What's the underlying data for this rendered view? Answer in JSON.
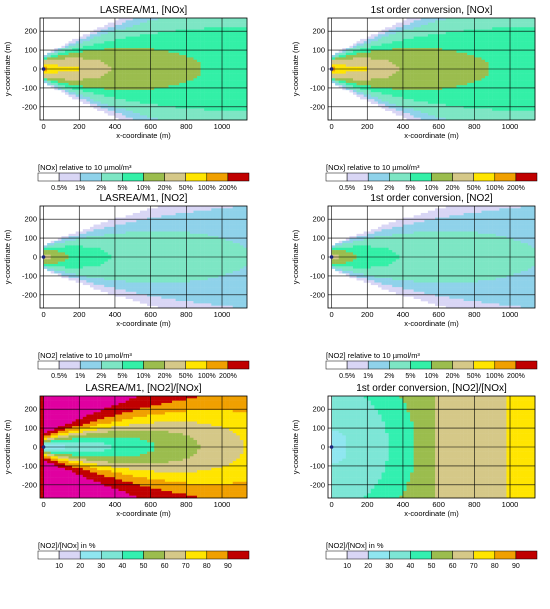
{
  "palette_conc": [
    "#ffffff",
    "#d9d6f5",
    "#8fd2ea",
    "#7de6c4",
    "#33f0a7",
    "#9bbd4e",
    "#d5c888",
    "#ffe500",
    "#f0a000",
    "#c00000",
    "#a020c0"
  ],
  "palette_ratio": [
    "#ffffff",
    "#d9d6f5",
    "#8fe6f0",
    "#7de6d6",
    "#33f0b0",
    "#9bbd4e",
    "#d5c888",
    "#ffe500",
    "#f0a000",
    "#c00000",
    "#e000a0"
  ],
  "chart_data": [
    {
      "type": "heatmap",
      "title": "LASREA/M1, [NOx]",
      "xlabel": "x-coordinate (m)",
      "ylabel": "y-coordinate (m)",
      "xlim": [
        -20,
        1140
      ],
      "ylim": [
        -270,
        270
      ],
      "xticks": [
        0,
        200,
        400,
        600,
        800,
        1000
      ],
      "yticks": [
        200,
        100,
        0,
        -100,
        -200
      ],
      "source": [
        0,
        0
      ],
      "field": "conc_nox_lasrea",
      "colorbar": {
        "title": "[NOx]  relative to 10 µmol/m³",
        "labels": [
          "0.5%",
          "1%",
          "2%",
          "5%",
          "10%",
          "20%",
          "50%",
          "100%",
          "200%"
        ]
      }
    },
    {
      "type": "heatmap",
      "title": "1st order conversion, [NOx]",
      "xlabel": "x-coordinate (m)",
      "ylabel": "y-coordinate (m)",
      "xlim": [
        -20,
        1140
      ],
      "ylim": [
        -270,
        270
      ],
      "xticks": [
        0,
        200,
        400,
        600,
        800,
        1000
      ],
      "yticks": [
        200,
        100,
        0,
        -100,
        -200
      ],
      "source": [
        0,
        0
      ],
      "field": "conc_nox_first",
      "colorbar": {
        "title": "[NOx]  relative to 10 µmol/m³",
        "labels": [
          "0.5%",
          "1%",
          "2%",
          "5%",
          "10%",
          "20%",
          "50%",
          "100%",
          "200%"
        ]
      }
    },
    {
      "type": "heatmap",
      "title": "LASREA/M1, [NO2]",
      "xlabel": "x-coordinate (m)",
      "ylabel": "y-coordinate (m)",
      "xlim": [
        -20,
        1140
      ],
      "ylim": [
        -270,
        270
      ],
      "xticks": [
        0,
        200,
        400,
        600,
        800,
        1000
      ],
      "yticks": [
        200,
        100,
        0,
        -100,
        -200
      ],
      "source": [
        0,
        0
      ],
      "field": "conc_no2",
      "colorbar": {
        "title": "[NO2]  relative to 10 µmol/m³",
        "labels": [
          "0.5%",
          "1%",
          "2%",
          "5%",
          "10%",
          "20%",
          "50%",
          "100%",
          "200%"
        ]
      }
    },
    {
      "type": "heatmap",
      "title": "1st order conversion, [NO2]",
      "xlabel": "x-coordinate (m)",
      "ylabel": "y-coordinate (m)",
      "xlim": [
        -20,
        1140
      ],
      "ylim": [
        -270,
        270
      ],
      "xticks": [
        0,
        200,
        400,
        600,
        800,
        1000
      ],
      "yticks": [
        200,
        100,
        0,
        -100,
        -200
      ],
      "source": [
        0,
        0
      ],
      "field": "conc_no2",
      "colorbar": {
        "title": "[NO2]  relative to 10 µmol/m³",
        "labels": [
          "0.5%",
          "1%",
          "2%",
          "5%",
          "10%",
          "20%",
          "50%",
          "100%",
          "200%"
        ]
      }
    },
    {
      "type": "heatmap",
      "title": "LASREA/M1, [NO2]/[NOx]",
      "xlabel": "x-coordinate (m)",
      "ylabel": "y-coordinate (m)",
      "xlim": [
        -20,
        1140
      ],
      "ylim": [
        -270,
        270
      ],
      "xticks": [
        0,
        200,
        400,
        600,
        800,
        1000
      ],
      "yticks": [
        200,
        100,
        0,
        -100,
        -200
      ],
      "source": [
        0,
        0
      ],
      "field": "ratio_lasrea",
      "colorbar": {
        "title": "[NO2]/[NOx]  in %",
        "labels": [
          "10",
          "20",
          "30",
          "40",
          "50",
          "60",
          "70",
          "80",
          "90"
        ]
      }
    },
    {
      "type": "heatmap",
      "title": "1st order conversion, [NO2]/[NOx]",
      "xlabel": "x-coordinate (m)",
      "ylabel": "y-coordinate (m)",
      "xlim": [
        -20,
        1140
      ],
      "ylim": [
        -270,
        270
      ],
      "xticks": [
        0,
        200,
        400,
        600,
        800,
        1000
      ],
      "yticks": [
        200,
        100,
        0,
        -100,
        -200
      ],
      "source": [
        0,
        0
      ],
      "field": "ratio_first",
      "colorbar": {
        "title": "[NO2]/[NOx]  in %",
        "labels": [
          "10",
          "20",
          "30",
          "40",
          "50",
          "60",
          "70",
          "80",
          "90"
        ]
      }
    }
  ]
}
